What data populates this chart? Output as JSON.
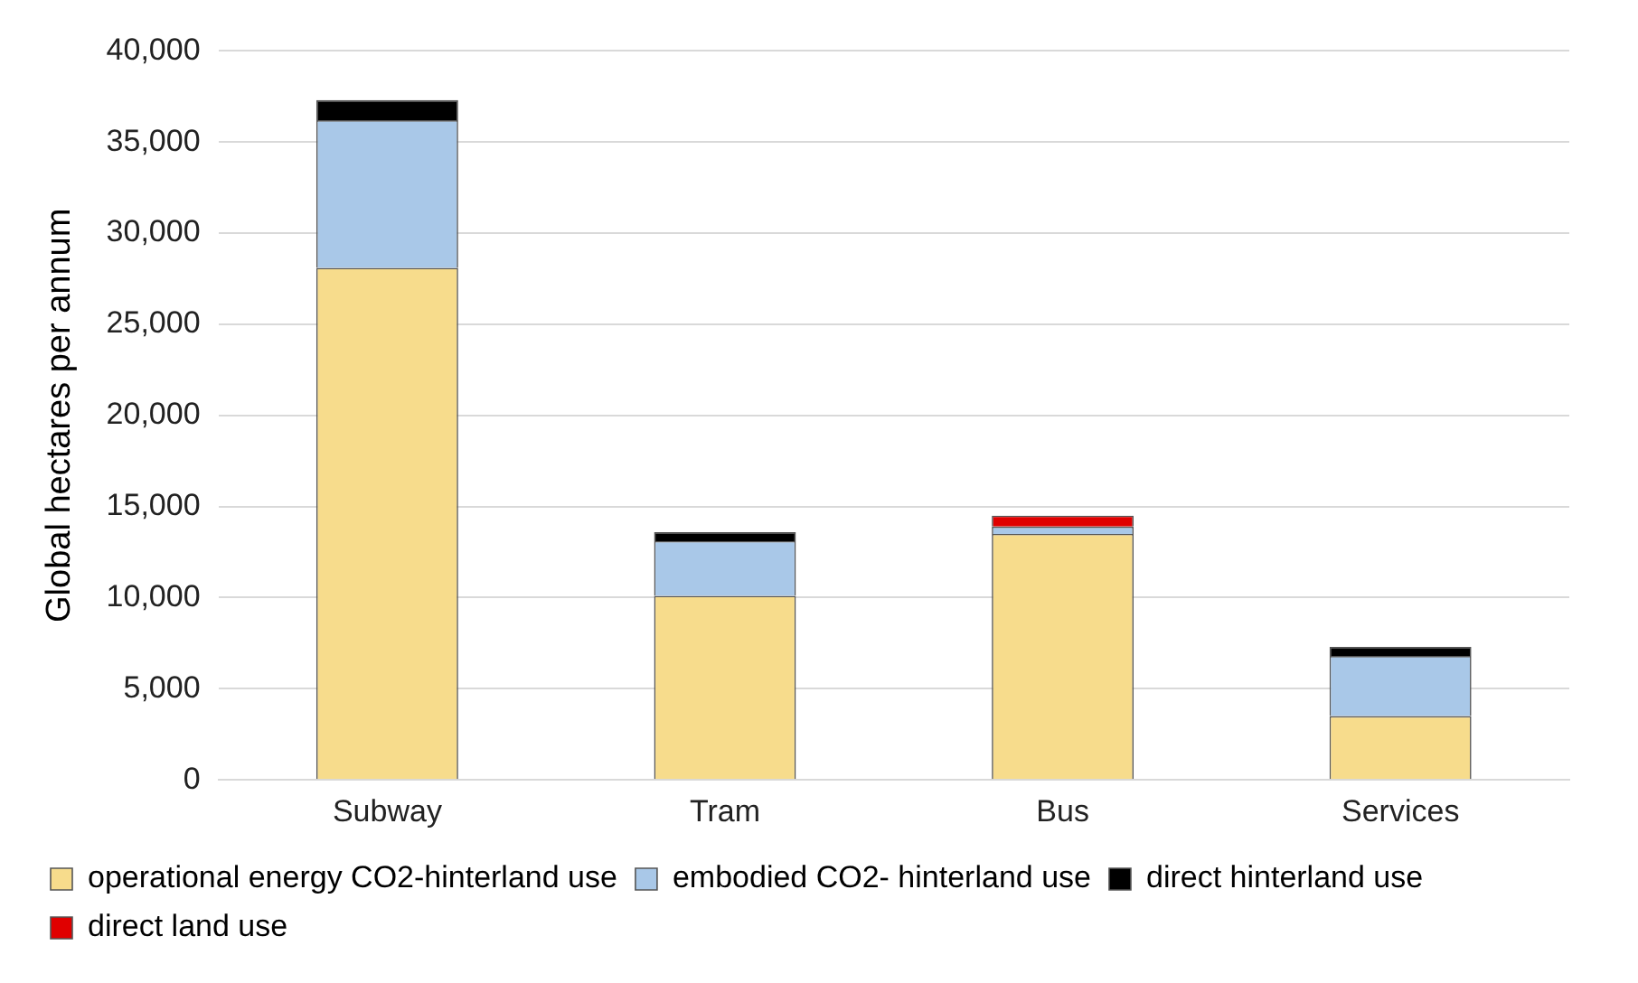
{
  "chart_data": {
    "type": "bar",
    "ylabel": "Global hectares per annum",
    "categories": [
      "Subway",
      "Tram",
      "Bus",
      "Services"
    ],
    "stacked": true,
    "series": [
      {
        "name": "operational energy CO2-hinterland use",
        "color": "#f7dc8c",
        "values": [
          28100,
          10100,
          13500,
          3500
        ]
      },
      {
        "name": "embodied CO2- hinterland use",
        "color": "#a9c8e8",
        "values": [
          8100,
          3000,
          400,
          3300
        ]
      },
      {
        "name": "direct hinterland use",
        "color": "#000000",
        "values": [
          1100,
          500,
          0,
          500
        ]
      },
      {
        "name": "direct land use",
        "color": "#e00000",
        "values": [
          0,
          0,
          600,
          0
        ]
      }
    ],
    "ylim": [
      0,
      40000
    ],
    "yticks": [
      0,
      {
        "value": 5000,
        "label": "5,000"
      },
      {
        "value": 10000,
        "label": "10,000"
      },
      {
        "value": 15000,
        "label": "15,000"
      },
      {
        "value": 20000,
        "label": "20,000"
      },
      {
        "value": 25000,
        "label": "25,000"
      },
      {
        "value": 30000,
        "label": "30,000"
      },
      {
        "value": 35000,
        "label": "35,000"
      },
      {
        "value": 40000,
        "label": "40,000"
      }
    ],
    "grid": "y",
    "legend": "bottom"
  }
}
